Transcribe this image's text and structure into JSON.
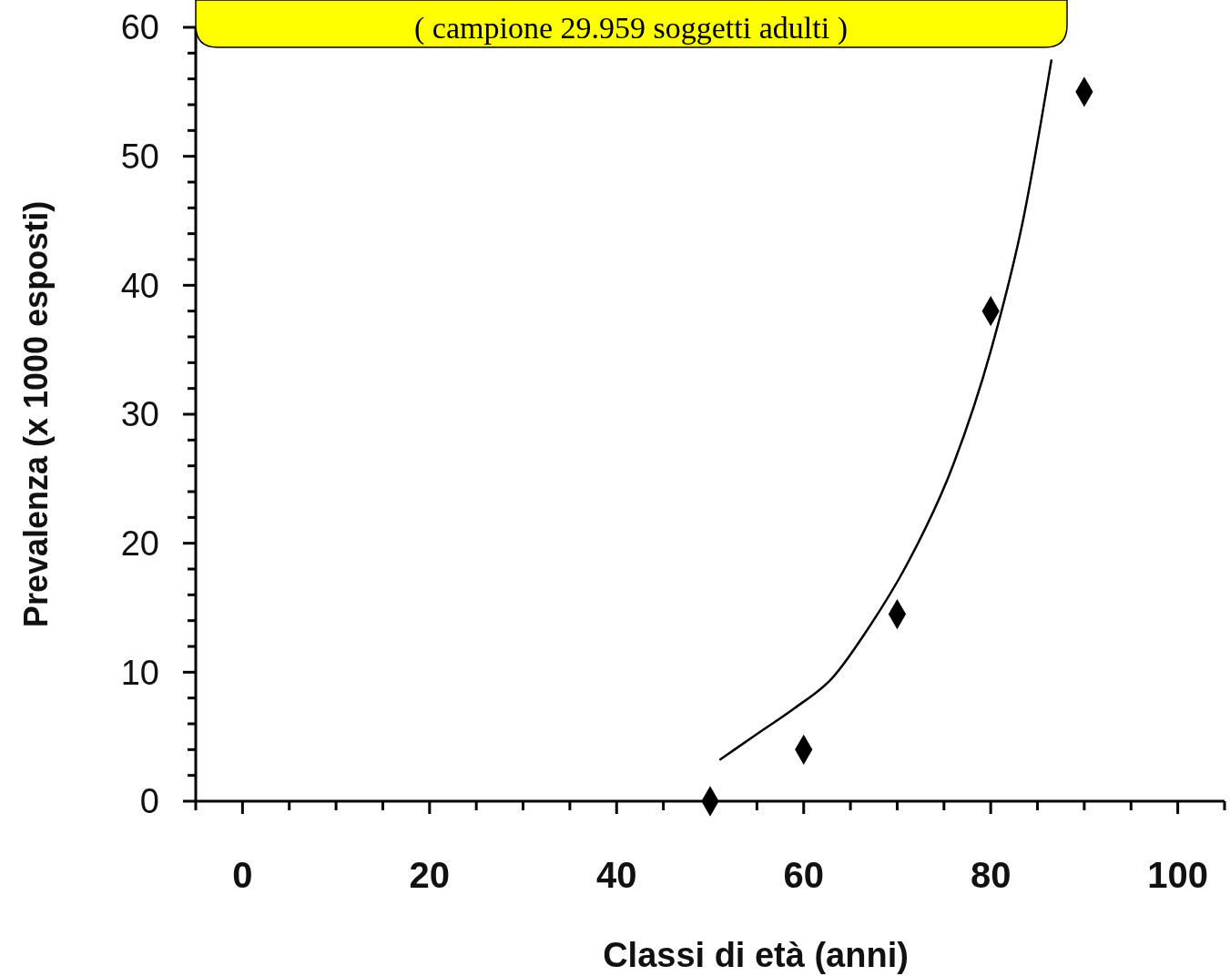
{
  "chart_data": {
    "type": "scatter",
    "xlabel": "Classi di età (anni)",
    "ylabel": "Prevalenza  (x 1000 esposti)",
    "annotations": [
      "( campione 29.959 soggetti adulti )"
    ],
    "xlim": [
      -5,
      105
    ],
    "ylim": [
      0,
      60
    ],
    "xticks": [
      {
        "value": -5,
        "label": null
      },
      0,
      {
        "value": 5,
        "label": null
      },
      {
        "value": 10,
        "label": null
      },
      {
        "value": 15,
        "label": null
      },
      20,
      {
        "value": 25,
        "label": null
      },
      {
        "value": 30,
        "label": null
      },
      {
        "value": 35,
        "label": null
      },
      40,
      {
        "value": 45,
        "label": null
      },
      {
        "value": 50,
        "label": null
      },
      {
        "value": 55,
        "label": null
      },
      60,
      {
        "value": 65,
        "label": null
      },
      {
        "value": 70,
        "label": null
      },
      {
        "value": 75,
        "label": null
      },
      80,
      {
        "value": 85,
        "label": null
      },
      {
        "value": 90,
        "label": null
      },
      {
        "value": 95,
        "label": null
      },
      100,
      {
        "value": 105,
        "label": null
      }
    ],
    "yticks": [
      0,
      {
        "value": 2,
        "label": null
      },
      {
        "value": 4,
        "label": null
      },
      {
        "value": 6,
        "label": null
      },
      {
        "value": 8,
        "label": null
      },
      10,
      {
        "value": 12,
        "label": null
      },
      {
        "value": 14,
        "label": null
      },
      {
        "value": 16,
        "label": null
      },
      {
        "value": 18,
        "label": null
      },
      20,
      {
        "value": 22,
        "label": null
      },
      {
        "value": 24,
        "label": null
      },
      {
        "value": 26,
        "label": null
      },
      {
        "value": 28,
        "label": null
      },
      30,
      {
        "value": 32,
        "label": null
      },
      {
        "value": 34,
        "label": null
      },
      {
        "value": 36,
        "label": null
      },
      {
        "value": 38,
        "label": null
      },
      40,
      {
        "value": 42,
        "label": null
      },
      {
        "value": 44,
        "label": null
      },
      {
        "value": 46,
        "label": null
      },
      {
        "value": 48,
        "label": null
      },
      50,
      {
        "value": 52,
        "label": null
      },
      {
        "value": 54,
        "label": null
      },
      {
        "value": 56,
        "label": null
      },
      {
        "value": 58,
        "label": null
      },
      60
    ],
    "grid": false,
    "series": [
      {
        "color": "#000000",
        "marker": "diamond",
        "x": [
          50,
          60,
          70,
          80,
          90
        ],
        "values": [
          0,
          4,
          14.5,
          38,
          55
        ]
      },
      {
        "type": "line",
        "color": "#000000",
        "line_style": "solid",
        "marker": "none",
        "x": [
          51,
          55,
          59,
          63,
          67,
          71,
          76,
          80,
          83.5,
          86.5
        ],
        "values": [
          3.2,
          5.2,
          7.2,
          9.5,
          13.5,
          18.3,
          26.1,
          34.9,
          45.2,
          57.5
        ]
      }
    ]
  }
}
